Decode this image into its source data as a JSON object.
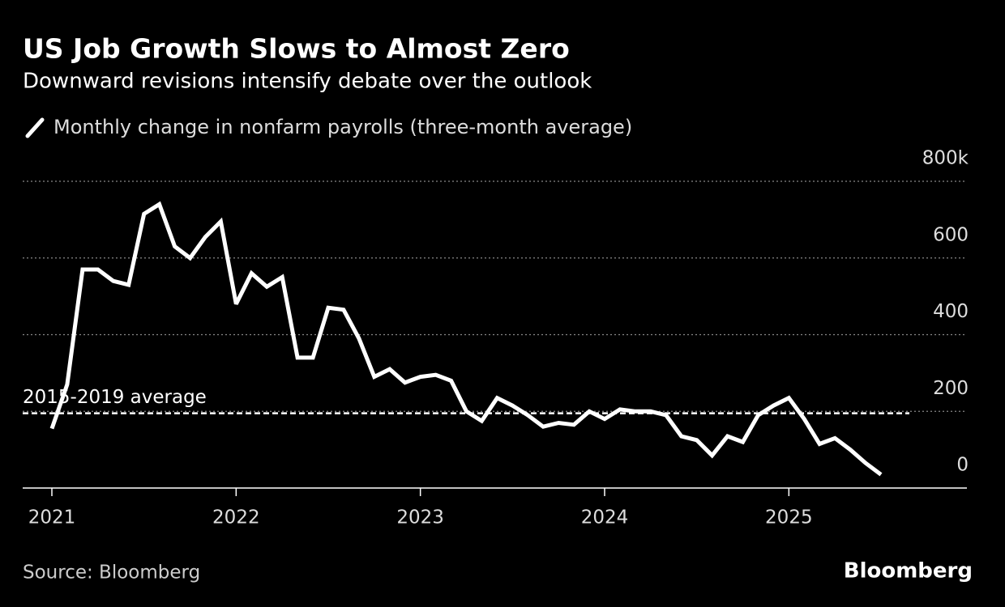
{
  "chart_data": {
    "type": "line",
    "title": "US Job Growth Slows to Almost Zero",
    "subtitle": "Downward revisions intensify debate over the outlook",
    "source": "Source: Bloomberg",
    "brand": "Bloomberg",
    "categories": [
      "2021",
      null,
      null,
      null,
      null,
      null,
      null,
      null,
      null,
      null,
      null,
      null,
      "2022",
      null,
      null,
      null,
      null,
      null,
      null,
      null,
      null,
      null,
      null,
      null,
      "2023",
      null,
      null,
      null,
      null,
      null,
      null,
      null,
      null,
      null,
      null,
      null,
      "2024",
      null,
      null,
      null,
      null,
      null,
      null,
      null,
      null,
      null,
      null,
      null,
      "2025",
      null,
      null,
      null,
      null,
      null,
      null
    ],
    "series": [
      {
        "name": "Monthly change in nonfarm payrolls (three-month average)",
        "color": "#ffffff",
        "values": [
          155,
          270,
          570,
          570,
          540,
          530,
          715,
          740,
          630,
          600,
          655,
          695,
          480,
          560,
          525,
          550,
          340,
          340,
          470,
          465,
          390,
          290,
          310,
          275,
          290,
          295,
          280,
          200,
          175,
          235,
          215,
          190,
          160,
          170,
          165,
          200,
          180,
          205,
          200,
          200,
          190,
          135,
          125,
          85,
          135,
          120,
          190,
          215,
          235,
          180,
          115,
          130,
          100,
          65,
          35
        ]
      }
    ],
    "reference_lines": [
      {
        "value": 195,
        "label": "2015-2019 average"
      }
    ],
    "ylim": [
      0,
      800
    ],
    "yticks": [
      0,
      200,
      400,
      600,
      {
        "value": 800,
        "label": "800k"
      }
    ],
    "grid": true
  }
}
